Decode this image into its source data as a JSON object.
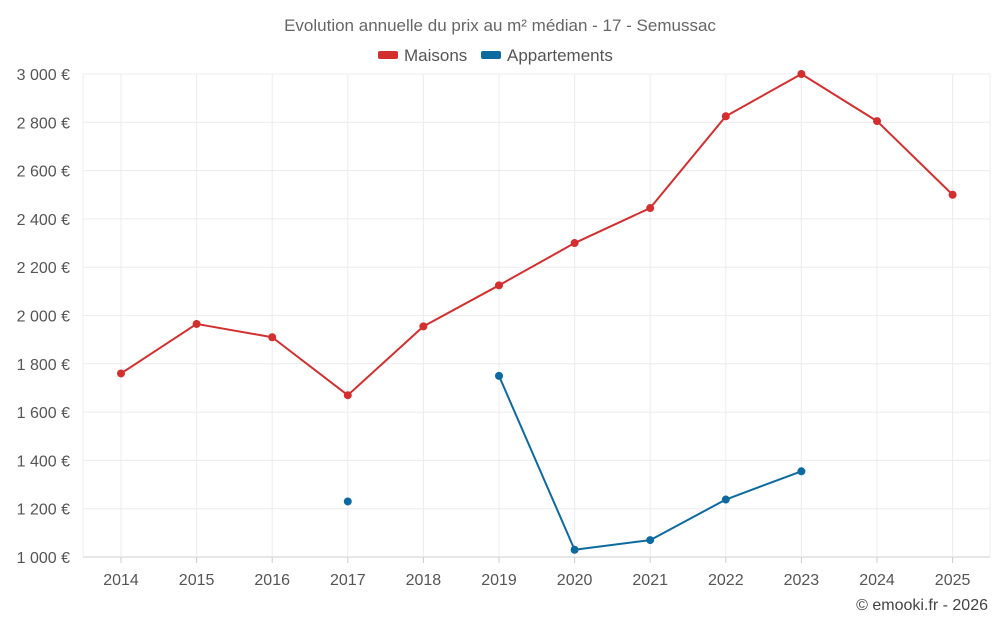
{
  "chart_data": {
    "type": "line",
    "title": "Evolution annuelle du prix au m² médian - 17 - Semussac",
    "x": [
      "2014",
      "2015",
      "2016",
      "2017",
      "2018",
      "2019",
      "2020",
      "2021",
      "2022",
      "2023",
      "2024",
      "2025"
    ],
    "y_ticks": [
      "1 000 €",
      "1 200 €",
      "1 400 €",
      "1 600 €",
      "1 800 €",
      "2 000 €",
      "2 200 €",
      "2 400 €",
      "2 600 €",
      "2 800 €",
      "3 000 €"
    ],
    "ylim": [
      1000,
      3000
    ],
    "grid": true,
    "legend_position": "top-center",
    "series": [
      {
        "name": "Maisons",
        "color": "#d32f2f",
        "values": [
          1760,
          1965,
          1910,
          1670,
          1955,
          2125,
          2300,
          2445,
          2825,
          3000,
          2805,
          2500
        ]
      },
      {
        "name": "Appartements",
        "color": "#0d6aa0",
        "values": [
          null,
          null,
          null,
          1230,
          null,
          1750,
          1030,
          1070,
          1238,
          1355,
          null,
          null
        ]
      }
    ]
  },
  "credit": "© emooki.fr - 2026"
}
